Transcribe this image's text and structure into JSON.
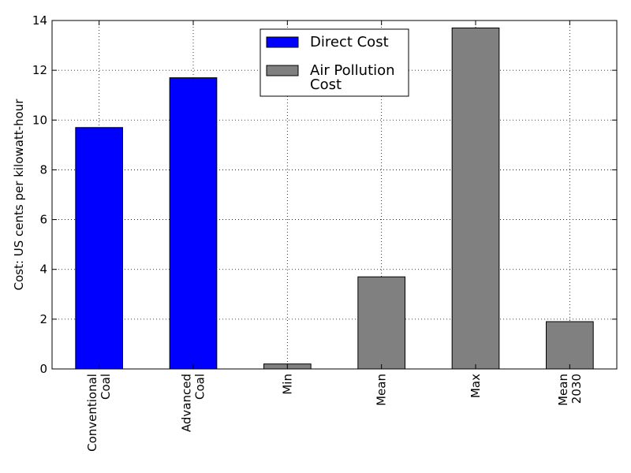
{
  "chart_data": {
    "type": "bar",
    "categories": [
      [
        "Conventional",
        "Coal"
      ],
      [
        "Advanced",
        "Coal"
      ],
      [
        "Min"
      ],
      [
        "Mean"
      ],
      [
        "Max"
      ],
      [
        "Mean",
        "2030"
      ]
    ],
    "values": [
      9.7,
      11.7,
      0.2,
      3.7,
      13.7,
      1.9
    ],
    "bar_series": [
      "Direct Cost",
      "Direct Cost",
      "Air Pollution Cost",
      "Air Pollution Cost",
      "Air Pollution Cost",
      "Air Pollution Cost"
    ],
    "series": [
      {
        "name": "Direct Cost",
        "color": "#0000ff",
        "legend_lines": [
          "Direct Cost"
        ]
      },
      {
        "name": "Air Pollution Cost",
        "color": "#808080",
        "legend_lines": [
          "Air Pollution",
          "Cost"
        ]
      }
    ],
    "xlabel": "",
    "ylabel": "Cost: US cents per kilowatt-hour",
    "ylim": [
      0,
      14
    ],
    "yticks": [
      0,
      2,
      4,
      6,
      8,
      10,
      12,
      14
    ],
    "grid": true,
    "legend_position": "top-center"
  }
}
